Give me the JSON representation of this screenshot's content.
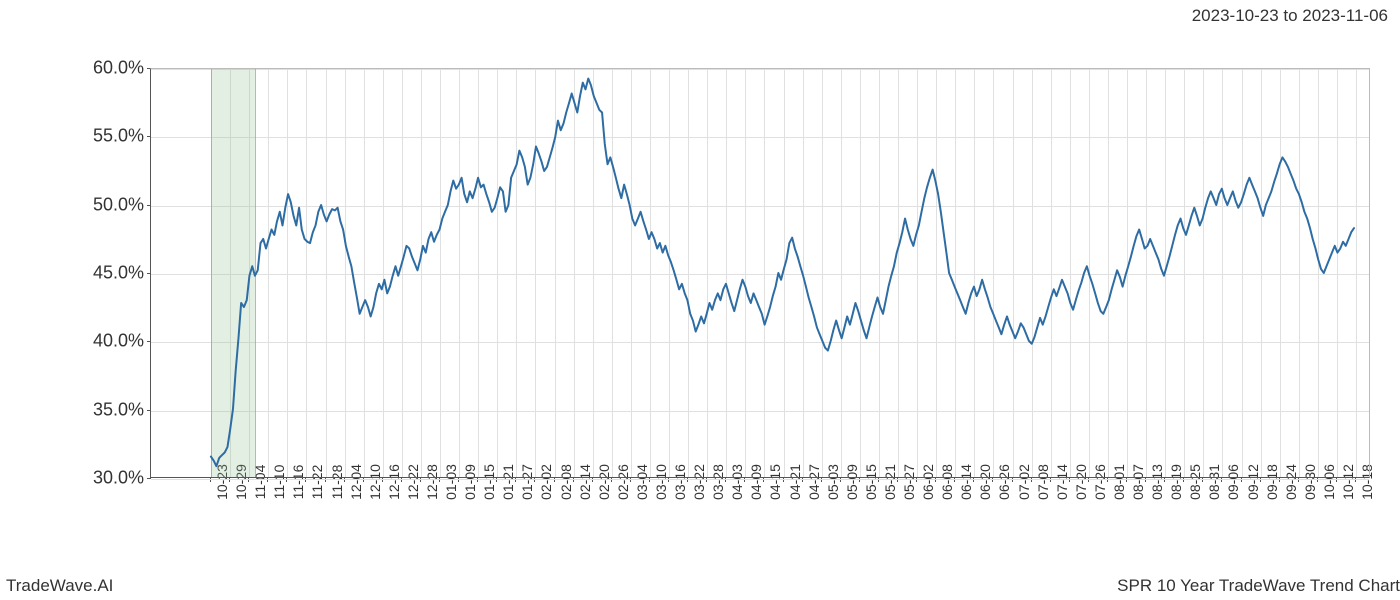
{
  "header": {
    "date_range": "2023-10-23 to 2023-11-06"
  },
  "footer": {
    "brand": "TradeWave.AI",
    "chart_title": "SPR 10 Year TradeWave Trend Chart"
  },
  "chart": {
    "type": "line",
    "background_color": "#ffffff",
    "grid_color": "#e0e0e0",
    "axis_color": "#555555",
    "line_color": "#2e6ca4",
    "line_width": 2,
    "highlight_color": "rgba(144,190,144,0.25)",
    "title_fontsize": 17,
    "ytick_fontsize": 18,
    "xtick_fontsize": 14,
    "ylim": [
      30,
      60
    ],
    "ytick_step": 5,
    "y_ticks": [
      30.0,
      35.0,
      40.0,
      45.0,
      50.0,
      55.0,
      60.0
    ],
    "y_tick_labels": [
      "30.0%",
      "35.0%",
      "40.0%",
      "45.0%",
      "50.0%",
      "55.0%",
      "60.0%"
    ],
    "x_ticks": [
      "10-23",
      "10-29",
      "11-04",
      "11-10",
      "11-16",
      "11-22",
      "11-28",
      "12-04",
      "12-10",
      "12-16",
      "12-22",
      "12-28",
      "01-03",
      "01-09",
      "01-15",
      "01-21",
      "01-27",
      "02-02",
      "02-08",
      "02-14",
      "02-20",
      "02-26",
      "03-04",
      "03-10",
      "03-16",
      "03-22",
      "03-28",
      "04-03",
      "04-09",
      "04-15",
      "04-21",
      "04-27",
      "05-03",
      "05-09",
      "05-15",
      "05-21",
      "05-27",
      "06-02",
      "06-08",
      "06-14",
      "06-20",
      "06-26",
      "07-02",
      "07-08",
      "07-14",
      "07-20",
      "07-26",
      "08-01",
      "08-07",
      "08-13",
      "08-19",
      "08-25",
      "08-31",
      "09-06",
      "09-12",
      "09-18",
      "09-24",
      "09-30",
      "10-06",
      "10-12",
      "10-18"
    ],
    "highlight_band": {
      "x_start": "10-23",
      "x_end": "11-06"
    },
    "values": [
      31.5,
      31.2,
      30.8,
      31.4,
      31.6,
      31.8,
      32.2,
      33.5,
      35.0,
      37.8,
      40.2,
      42.8,
      42.5,
      43.0,
      44.8,
      45.5,
      44.8,
      45.2,
      47.2,
      47.5,
      46.8,
      47.5,
      48.2,
      47.8,
      48.8,
      49.5,
      48.5,
      49.8,
      50.8,
      50.2,
      49.2,
      48.5,
      49.8,
      48.2,
      47.5,
      47.3,
      47.2,
      48.0,
      48.5,
      49.5,
      50.0,
      49.3,
      48.8,
      49.3,
      49.7,
      49.6,
      49.8,
      48.8,
      48.2,
      47.0,
      46.2,
      45.5,
      44.3,
      43.2,
      42.0,
      42.5,
      43.0,
      42.5,
      41.8,
      42.5,
      43.5,
      44.2,
      43.8,
      44.5,
      43.5,
      44.0,
      44.8,
      45.5,
      44.8,
      45.5,
      46.2,
      47.0,
      46.8,
      46.2,
      45.7,
      45.2,
      46.0,
      47.0,
      46.5,
      47.5,
      48.0,
      47.3,
      47.8,
      48.2,
      49.0,
      49.5,
      50.0,
      51.0,
      51.8,
      51.2,
      51.5,
      52.0,
      50.8,
      50.2,
      51.0,
      50.5,
      51.2,
      52.0,
      51.3,
      51.5,
      50.8,
      50.2,
      49.5,
      49.8,
      50.5,
      51.3,
      51.0,
      49.5,
      50.0,
      52.0,
      52.5,
      53.0,
      54.0,
      53.5,
      52.8,
      51.5,
      52.0,
      53.0,
      54.3,
      53.8,
      53.2,
      52.5,
      52.8,
      53.5,
      54.2,
      55.0,
      56.2,
      55.5,
      56.0,
      56.8,
      57.5,
      58.2,
      57.5,
      56.8,
      58.0,
      59.0,
      58.5,
      59.3,
      58.8,
      58.0,
      57.5,
      57.0,
      56.8,
      54.5,
      53.0,
      53.5,
      52.8,
      52.0,
      51.2,
      50.5,
      51.5,
      50.8,
      50.0,
      49.0,
      48.5,
      49.0,
      49.5,
      48.8,
      48.2,
      47.5,
      48.0,
      47.5,
      46.8,
      47.2,
      46.5,
      47.0,
      46.3,
      45.8,
      45.2,
      44.5,
      43.8,
      44.2,
      43.5,
      43.0,
      42.0,
      41.5,
      40.7,
      41.2,
      41.8,
      41.3,
      42.0,
      42.8,
      42.3,
      43.0,
      43.5,
      43.0,
      43.8,
      44.2,
      43.5,
      42.8,
      42.2,
      43.0,
      43.8,
      44.5,
      44.0,
      43.3,
      42.8,
      43.5,
      43.0,
      42.5,
      42.0,
      41.2,
      41.8,
      42.5,
      43.3,
      44.0,
      45.0,
      44.5,
      45.3,
      46.0,
      47.2,
      47.6,
      46.8,
      46.2,
      45.5,
      44.8,
      44.0,
      43.2,
      42.5,
      41.8,
      41.0,
      40.5,
      40.0,
      39.5,
      39.3,
      40.0,
      40.8,
      41.5,
      40.8,
      40.2,
      41.0,
      41.8,
      41.2,
      42.0,
      42.8,
      42.2,
      41.5,
      40.8,
      40.2,
      41.0,
      41.8,
      42.5,
      43.2,
      42.5,
      42.0,
      43.0,
      44.0,
      44.8,
      45.5,
      46.5,
      47.2,
      48.0,
      49.0,
      48.2,
      47.5,
      47.0,
      47.8,
      48.5,
      49.5,
      50.5,
      51.3,
      52.0,
      52.6,
      51.8,
      50.8,
      49.5,
      48.0,
      46.5,
      45.0,
      44.5,
      44.0,
      43.5,
      43.0,
      42.5,
      42.0,
      42.8,
      43.5,
      44.0,
      43.3,
      43.8,
      44.5,
      43.8,
      43.2,
      42.5,
      42.0,
      41.5,
      41.0,
      40.5,
      41.2,
      41.8,
      41.2,
      40.7,
      40.2,
      40.7,
      41.3,
      41.0,
      40.5,
      40.0,
      39.8,
      40.3,
      41.0,
      41.7,
      41.2,
      41.8,
      42.5,
      43.2,
      43.8,
      43.3,
      43.9,
      44.5,
      44.0,
      43.5,
      42.8,
      42.3,
      43.0,
      43.7,
      44.3,
      45.0,
      45.5,
      44.8,
      44.2,
      43.5,
      42.8,
      42.2,
      42.0,
      42.5,
      43.0,
      43.8,
      44.5,
      45.2,
      44.7,
      44.0,
      44.8,
      45.5,
      46.2,
      47.0,
      47.7,
      48.2,
      47.5,
      46.8,
      47.0,
      47.5,
      47.0,
      46.5,
      46.0,
      45.3,
      44.8,
      45.5,
      46.2,
      47.0,
      47.8,
      48.5,
      49.0,
      48.3,
      47.8,
      48.5,
      49.2,
      49.8,
      49.2,
      48.5,
      49.0,
      49.8,
      50.5,
      51.0,
      50.5,
      50.0,
      50.8,
      51.2,
      50.5,
      50.0,
      50.5,
      51.0,
      50.3,
      49.8,
      50.2,
      50.8,
      51.5,
      52.0,
      51.5,
      51.0,
      50.5,
      49.8,
      49.2,
      50.0,
      50.5,
      51.0,
      51.7,
      52.3,
      53.0,
      53.5,
      53.2,
      52.8,
      52.3,
      51.8,
      51.2,
      50.8,
      50.2,
      49.5,
      49.0,
      48.3,
      47.5,
      46.8,
      46.0,
      45.3,
      45.0,
      45.5,
      46.0,
      46.5,
      47.0,
      46.5,
      46.8,
      47.3,
      47.0,
      47.5,
      48.0,
      48.3
    ]
  }
}
